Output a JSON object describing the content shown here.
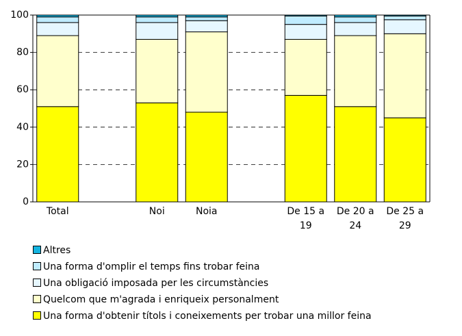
{
  "chart_data": {
    "type": "bar",
    "stacked": true,
    "categories": [
      "Total",
      null,
      "Noi",
      "Noia",
      null,
      "De 15 a 19",
      "De 20 a 24",
      "De 25 a 29"
    ],
    "series": [
      {
        "name": "Una forma d'obtenir títols i coneixements per trobar una millor feina",
        "color": "#ffff00",
        "values": [
          51,
          null,
          53,
          48,
          null,
          57,
          51,
          45
        ]
      },
      {
        "name": "Quelcom que m'agrada i enriqueix personalment",
        "color": "#ffffcc",
        "values": [
          38,
          null,
          34,
          43,
          null,
          30,
          38,
          45
        ]
      },
      {
        "name": "Una obligació imposada per les circumstàncies",
        "color": "#e6f7ff",
        "values": [
          7,
          null,
          9,
          6,
          null,
          8,
          7,
          7.5
        ]
      },
      {
        "name": "Una forma d'omplir el temps fins trobar feina",
        "color": "#c0ecff",
        "values": [
          3,
          null,
          3,
          2,
          null,
          4.5,
          3,
          2
        ]
      },
      {
        "name": "Altres",
        "color": "#14b4e0",
        "values": [
          1,
          null,
          1,
          1,
          null,
          0.5,
          1,
          0.5
        ]
      }
    ],
    "ylim": [
      0,
      100
    ],
    "yticks": [
      0,
      20,
      40,
      60,
      80,
      100
    ],
    "grid": true
  }
}
